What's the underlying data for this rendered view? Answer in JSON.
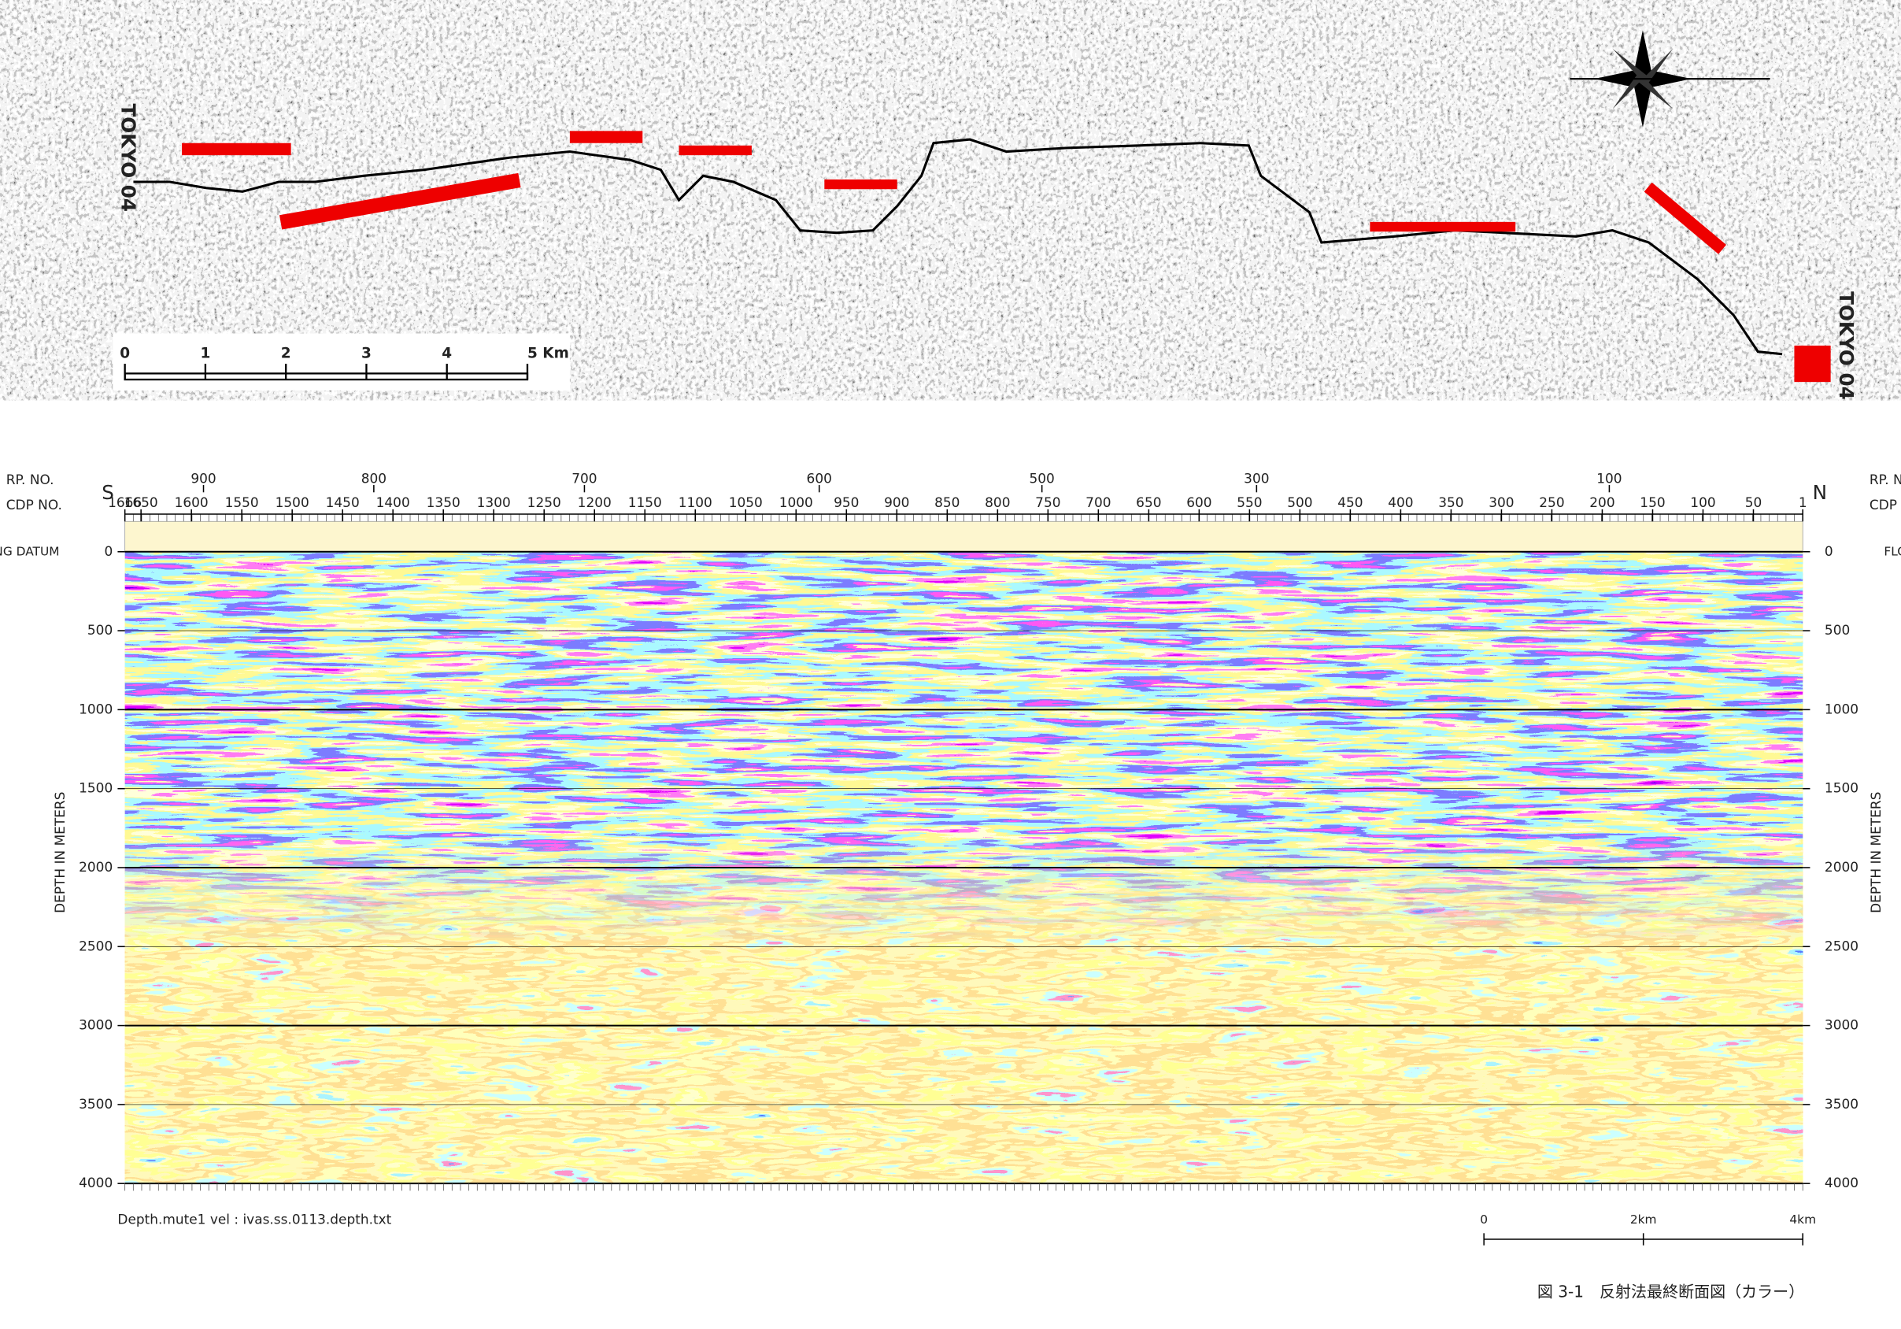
{
  "map": {
    "route_labels": [
      "TOKYO 04",
      "TOKYO 04"
    ],
    "scale_bar": {
      "lim": [
        0,
        5
      ],
      "ticks": [
        0,
        1,
        2,
        3,
        4,
        {
          "value": 5,
          "label": "5 Km"
        }
      ]
    }
  },
  "section": {
    "rp_label": "RP. NO.",
    "cdp_label": "CDP NO.",
    "start": "S",
    "end": "N",
    "datum": "FLOATING DATUM",
    "depth_title": "DEPTH IN METERS",
    "depth_lim": [
      0,
      4000
    ],
    "depth_ticks": [
      0,
      500,
      1000,
      1500,
      2000,
      2500,
      3000,
      3500,
      4000
    ],
    "cdp_lim": [
      1666,
      1
    ],
    "cdp_ticks": [
      1666,
      1650,
      1600,
      1550,
      1500,
      1450,
      1400,
      1350,
      1300,
      1250,
      1200,
      1150,
      1100,
      1050,
      1000,
      950,
      900,
      850,
      800,
      750,
      700,
      650,
      600,
      550,
      500,
      450,
      400,
      350,
      300,
      250,
      200,
      150,
      100,
      50,
      1
    ],
    "rp_ticks": [
      {
        "rp": 900,
        "cdp": 1588
      },
      {
        "rp": 800,
        "cdp": 1419
      },
      {
        "rp": 700,
        "cdp": 1210
      },
      {
        "rp": 600,
        "cdp": 977
      },
      {
        "rp": 500,
        "cdp": 756
      },
      {
        "rp": 300,
        "cdp": 543
      },
      {
        "rp": 100,
        "cdp": 193
      }
    ],
    "footnote": "Depth.mute1   vel : ivas.ss.0113.depth.txt",
    "scale": {
      "lim": [
        0,
        4
      ],
      "ticks": [
        0,
        {
          "value": 2,
          "label": "2km"
        },
        {
          "value": 4,
          "label": "4km"
        }
      ]
    }
  },
  "caption": "図 3-1　反射法最終断面図（カラー）"
}
